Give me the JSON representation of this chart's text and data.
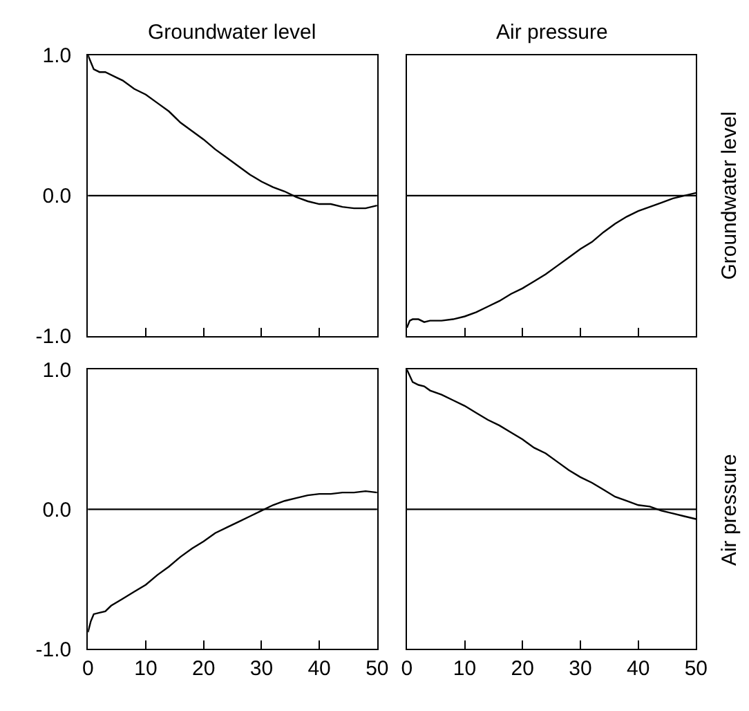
{
  "chart_data": [
    {
      "type": "line",
      "title": "Groundwater level",
      "x": [
        0,
        1,
        2,
        3,
        5,
        6,
        8,
        10,
        12,
        14,
        16,
        18,
        20,
        22,
        24,
        26,
        28,
        30,
        32,
        34,
        36,
        38,
        40,
        42,
        44,
        46,
        48,
        50
      ],
      "series": [
        {
          "color": "#000000",
          "values": [
            1.0,
            0.9,
            0.88,
            0.88,
            0.84,
            0.82,
            0.76,
            0.72,
            0.66,
            0.6,
            0.52,
            0.46,
            0.4,
            0.33,
            0.27,
            0.21,
            0.15,
            0.1,
            0.06,
            0.03,
            -0.01,
            -0.04,
            -0.06,
            -0.06,
            -0.08,
            -0.09,
            -0.09,
            -0.07
          ]
        }
      ],
      "xlim": [
        0,
        50
      ],
      "ylim": [
        -1,
        1
      ],
      "xticks": [
        {
          "value": 0,
          "label": null
        },
        {
          "value": 10,
          "label": null
        },
        {
          "value": 20,
          "label": null
        },
        {
          "value": 30,
          "label": null
        },
        {
          "value": 40,
          "label": null
        },
        {
          "value": 50,
          "label": null
        }
      ],
      "yticks": [
        {
          "value": -1,
          "label": "-1.0"
        },
        {
          "value": 0,
          "label": "0.0"
        },
        {
          "value": 1,
          "label": "1.0"
        }
      ],
      "ref_lines": [
        {
          "axis": "y",
          "value": 0,
          "color": "#000000"
        }
      ],
      "tick_labels": "y"
    },
    {
      "type": "line",
      "title": "Air pressure",
      "ylabel": "Groundwater level",
      "x": [
        0,
        0.5,
        1,
        2,
        3,
        4,
        6,
        8,
        10,
        12,
        14,
        16,
        18,
        20,
        22,
        24,
        26,
        28,
        30,
        32,
        34,
        36,
        38,
        40,
        42,
        44,
        46,
        48,
        50
      ],
      "series": [
        {
          "color": "#000000",
          "values": [
            -0.94,
            -0.89,
            -0.88,
            -0.88,
            -0.9,
            -0.89,
            -0.89,
            -0.88,
            -0.86,
            -0.83,
            -0.79,
            -0.75,
            -0.7,
            -0.66,
            -0.61,
            -0.56,
            -0.5,
            -0.44,
            -0.38,
            -0.33,
            -0.26,
            -0.2,
            -0.15,
            -0.11,
            -0.08,
            -0.05,
            -0.02,
            0.0,
            0.02
          ]
        }
      ],
      "xlim": [
        0,
        50
      ],
      "ylim": [
        -1,
        1
      ],
      "xticks": [
        {
          "value": 0,
          "label": null
        },
        {
          "value": 10,
          "label": null
        },
        {
          "value": 20,
          "label": null
        },
        {
          "value": 30,
          "label": null
        },
        {
          "value": 40,
          "label": null
        },
        {
          "value": 50,
          "label": null
        }
      ],
      "ref_lines": [
        {
          "axis": "y",
          "value": 0,
          "color": "#000000"
        }
      ],
      "tick_labels": false
    },
    {
      "type": "line",
      "x": [
        0,
        0.5,
        1,
        2,
        3,
        4,
        6,
        8,
        10,
        12,
        14,
        16,
        18,
        20,
        22,
        24,
        26,
        28,
        30,
        32,
        34,
        36,
        38,
        40,
        42,
        44,
        46,
        48,
        50
      ],
      "series": [
        {
          "color": "#000000",
          "values": [
            -0.88,
            -0.8,
            -0.75,
            -0.74,
            -0.73,
            -0.69,
            -0.64,
            -0.59,
            -0.54,
            -0.47,
            -0.41,
            -0.34,
            -0.28,
            -0.23,
            -0.17,
            -0.13,
            -0.09,
            -0.05,
            -0.01,
            0.03,
            0.06,
            0.08,
            0.1,
            0.11,
            0.11,
            0.12,
            0.12,
            0.13,
            0.12
          ]
        }
      ],
      "xlim": [
        0,
        50
      ],
      "ylim": [
        -1,
        1
      ],
      "xticks": [
        0,
        10,
        20,
        30,
        40,
        50
      ],
      "yticks": [
        {
          "value": -1,
          "label": "-1.0"
        },
        {
          "value": 0,
          "label": "0.0"
        },
        {
          "value": 1,
          "label": "1.0"
        }
      ],
      "ref_lines": [
        {
          "axis": "y",
          "value": 0,
          "color": "#000000"
        }
      ]
    },
    {
      "type": "line",
      "ylabel": "Air pressure",
      "x": [
        0,
        1,
        2,
        3,
        4,
        6,
        8,
        10,
        12,
        14,
        16,
        18,
        20,
        22,
        24,
        26,
        28,
        30,
        32,
        34,
        36,
        38,
        40,
        42,
        44,
        46,
        48,
        50
      ],
      "series": [
        {
          "color": "#000000",
          "values": [
            1.0,
            0.91,
            0.89,
            0.88,
            0.85,
            0.82,
            0.78,
            0.74,
            0.69,
            0.64,
            0.6,
            0.55,
            0.5,
            0.44,
            0.4,
            0.34,
            0.28,
            0.23,
            0.19,
            0.14,
            0.09,
            0.06,
            0.03,
            0.02,
            -0.01,
            -0.03,
            -0.05,
            -0.07
          ]
        }
      ],
      "xlim": [
        0,
        50
      ],
      "ylim": [
        -1,
        1
      ],
      "xticks": [
        0,
        10,
        20,
        30,
        40,
        50
      ],
      "ref_lines": [
        {
          "axis": "y",
          "value": 0,
          "color": "#000000"
        }
      ],
      "tick_labels": "x"
    }
  ]
}
